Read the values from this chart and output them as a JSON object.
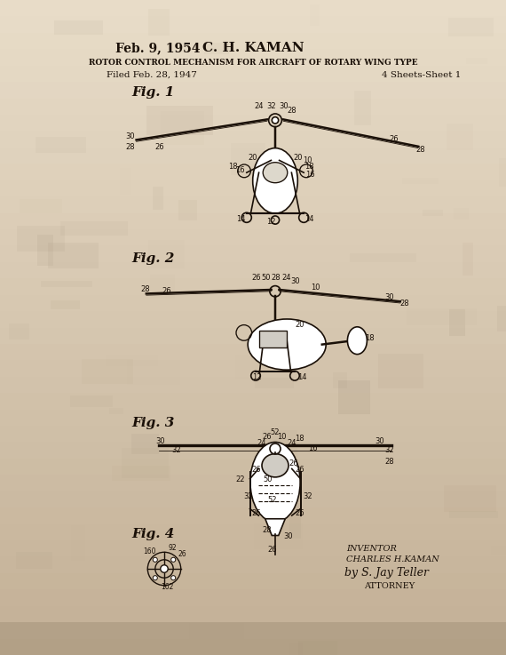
{
  "bg_color_top": "#e8dcc8",
  "bg_color_mid": "#d4c5a9",
  "bg_color_bottom": "#c8b99a",
  "text_color": "#1a1008",
  "date_text": "Feb. 9, 1954",
  "inventor_name": "C. H. KAMAN",
  "patent_title": "ROTOR CONTROL MECHANISM FOR AIRCRAFT OF ROTARY WING TYPE",
  "filed_text": "Filed Feb. 28, 1947",
  "sheets_text": "4 Sheets-Sheet 1",
  "inventor_label": "INVENTOR",
  "inventor_full": "CHARLES H.KAMAN",
  "by_attorney": "by S. Jay Teller",
  "attorney_label": "ATTORNEY",
  "fig1_label": "Fig. 1",
  "fig2_label": "Fig. 2",
  "fig3_label": "Fig. 3",
  "fig4_label": "Fig. 4"
}
